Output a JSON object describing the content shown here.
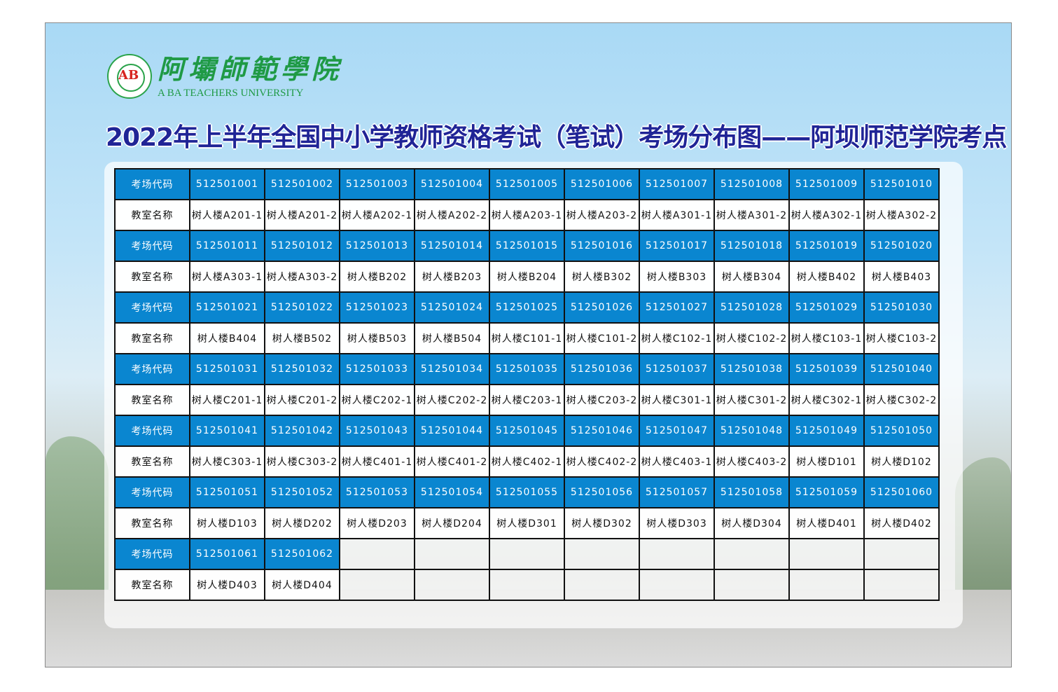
{
  "logo": {
    "cn": "阿壩師範學院",
    "en": "A BA TEACHERS UNIVERSITY",
    "seal_text": "AB"
  },
  "title": "2022年上半年全国中小学教师资格考试（笔试）考场分布图——阿坝师范学院考点",
  "labels": {
    "code": "考场代码",
    "room": "教室名称"
  },
  "colors": {
    "header_blue": "#0a86d0",
    "title_navy": "#202496",
    "logo_green": "#1f9a45"
  },
  "groups": [
    {
      "codes": [
        "512501001",
        "512501002",
        "512501003",
        "512501004",
        "512501005",
        "512501006",
        "512501007",
        "512501008",
        "512501009",
        "512501010"
      ],
      "rooms": [
        "树人楼A201-1",
        "树人楼A201-2",
        "树人楼A202-1",
        "树人楼A202-2",
        "树人楼A203-1",
        "树人楼A203-2",
        "树人楼A301-1",
        "树人楼A301-2",
        "树人楼A302-1",
        "树人楼A302-2"
      ]
    },
    {
      "codes": [
        "512501011",
        "512501012",
        "512501013",
        "512501014",
        "512501015",
        "512501016",
        "512501017",
        "512501018",
        "512501019",
        "512501020"
      ],
      "rooms": [
        "树人楼A303-1",
        "树人楼A303-2",
        "树人楼B202",
        "树人楼B203",
        "树人楼B204",
        "树人楼B302",
        "树人楼B303",
        "树人楼B304",
        "树人楼B402",
        "树人楼B403"
      ]
    },
    {
      "codes": [
        "512501021",
        "512501022",
        "512501023",
        "512501024",
        "512501025",
        "512501026",
        "512501027",
        "512501028",
        "512501029",
        "512501030"
      ],
      "rooms": [
        "树人楼B404",
        "树人楼B502",
        "树人楼B503",
        "树人楼B504",
        "树人楼C101-1",
        "树人楼C101-2",
        "树人楼C102-1",
        "树人楼C102-2",
        "树人楼C103-1",
        "树人楼C103-2"
      ]
    },
    {
      "codes": [
        "512501031",
        "512501032",
        "512501033",
        "512501034",
        "512501035",
        "512501036",
        "512501037",
        "512501038",
        "512501039",
        "512501040"
      ],
      "rooms": [
        "树人楼C201-1",
        "树人楼C201-2",
        "树人楼C202-1",
        "树人楼C202-2",
        "树人楼C203-1",
        "树人楼C203-2",
        "树人楼C301-1",
        "树人楼C301-2",
        "树人楼C302-1",
        "树人楼C302-2"
      ]
    },
    {
      "codes": [
        "512501041",
        "512501042",
        "512501043",
        "512501044",
        "512501045",
        "512501046",
        "512501047",
        "512501048",
        "512501049",
        "512501050"
      ],
      "rooms": [
        "树人楼C303-1",
        "树人楼C303-2",
        "树人楼C401-1",
        "树人楼C401-2",
        "树人楼C402-1",
        "树人楼C402-2",
        "树人楼C403-1",
        "树人楼C403-2",
        "树人楼D101",
        "树人楼D102"
      ]
    },
    {
      "codes": [
        "512501051",
        "512501052",
        "512501053",
        "512501054",
        "512501055",
        "512501056",
        "512501057",
        "512501058",
        "512501059",
        "512501060"
      ],
      "rooms": [
        "树人楼D103",
        "树人楼D202",
        "树人楼D203",
        "树人楼D204",
        "树人楼D301",
        "树人楼D302",
        "树人楼D303",
        "树人楼D304",
        "树人楼D401",
        "树人楼D402"
      ]
    },
    {
      "codes": [
        "512501061",
        "512501062"
      ],
      "rooms": [
        "树人楼D403",
        "树人楼D404"
      ]
    }
  ]
}
